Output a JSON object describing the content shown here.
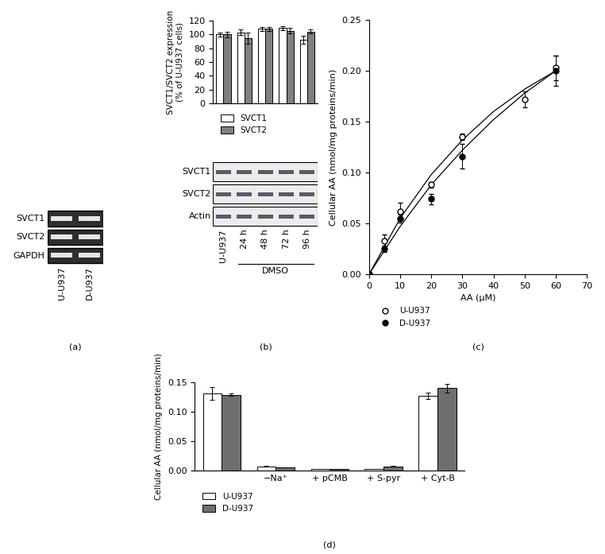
{
  "chart_data": [
    {
      "type": "blot",
      "panel": "(a)",
      "rows": [
        "SVCT1",
        "SVCT2",
        "GAPDH"
      ],
      "lanes": [
        "U-U937",
        "D-U937"
      ]
    },
    {
      "type": "bar",
      "panel": "(b)",
      "y_label": "SVCT1/SVCT2 expression\n(% of U-U937 cells)",
      "categories": [
        "U-U937",
        "24 h",
        "48 h",
        "72 h",
        "96 h"
      ],
      "series": [
        {
          "name": "SVCT1",
          "color": "#ffffff",
          "values": [
            100,
            103,
            108,
            109,
            92
          ],
          "errors": [
            3,
            4,
            3,
            3,
            6
          ]
        },
        {
          "name": "SVCT2",
          "color": "#808080",
          "values": [
            100,
            94,
            108,
            105,
            104
          ],
          "errors": [
            4,
            8,
            3,
            4,
            3
          ]
        }
      ],
      "ylim": [
        0,
        120
      ],
      "yticks": [
        0,
        20,
        40,
        60,
        80,
        100,
        120
      ],
      "tick_labels": "y",
      "legend": "upper left",
      "blot": {
        "rows": [
          "SVCT1",
          "SVCT2",
          "Actin"
        ],
        "group_label": "DMSO"
      }
    },
    {
      "type": "scatter",
      "panel": "(c)",
      "x_label": "AA (μM)",
      "y_label": "Cellular AA (nmol/mg proteins/min)",
      "series": [
        {
          "name": "U-U937",
          "color": "#000000",
          "marker": "open_circle",
          "x": [
            0,
            5,
            10,
            20,
            30,
            50,
            60
          ],
          "values": [
            0,
            0.033,
            0.062,
            0.088,
            0.135,
            0.172,
            0.203
          ],
          "errors": [
            0,
            0.006,
            0.008,
            0.003,
            0.003,
            0.008,
            0.012
          ]
        },
        {
          "name": "D-U937",
          "color": "#000000",
          "marker": "circle",
          "x": [
            0,
            5,
            10,
            20,
            30,
            60
          ],
          "values": [
            0,
            0.025,
            0.055,
            0.074,
            0.116,
            0.2
          ],
          "errors": [
            0,
            0.003,
            0.004,
            0.005,
            0.012,
            0.015
          ]
        },
        {
          "type": "line",
          "color": "#000000",
          "line_style": "solid",
          "x": [
            0,
            10,
            20,
            30,
            40,
            50,
            60
          ],
          "values": [
            0,
            0.055,
            0.098,
            0.132,
            0.16,
            0.182,
            0.2
          ]
        },
        {
          "type": "line",
          "color": "#000000",
          "line_style": "solid",
          "x": [
            0,
            10,
            20,
            30,
            40,
            50,
            60
          ],
          "values": [
            0,
            0.047,
            0.088,
            0.122,
            0.152,
            0.178,
            0.2
          ]
        }
      ],
      "xlim": [
        0,
        70
      ],
      "xticks": [
        0,
        10,
        20,
        30,
        40,
        50,
        60,
        70
      ],
      "ylim": [
        0,
        0.25
      ],
      "yticks": [
        {
          "value": 0,
          "label": "0.00"
        },
        {
          "value": 0.05,
          "label": "0.05"
        },
        {
          "value": 0.1,
          "label": "0.10"
        },
        {
          "value": 0.15,
          "label": "0.15"
        },
        {
          "value": 0.2,
          "label": "0.20"
        },
        {
          "value": 0.25,
          "label": "0.25"
        }
      ],
      "legend": "upper left"
    },
    {
      "type": "bar",
      "panel": "(d)",
      "y_label": "Cellular AA (nmol/mg proteins/min)",
      "categories": [
        null,
        "−Na⁺",
        "+ pCMB",
        "+ S-pyr",
        "+ Cyt-B"
      ],
      "series": [
        {
          "name": "U-U937",
          "color": "#ffffff",
          "values": [
            0.131,
            0.008,
            0.003,
            0.003,
            0.127
          ],
          "errors": [
            0.011,
            0.0005,
            0,
            0,
            0.006
          ]
        },
        {
          "name": "D-U937",
          "color": "#6e6e6e",
          "values": [
            0.129,
            0.006,
            0.003,
            0.008,
            0.14
          ],
          "errors": [
            0.002,
            0.0005,
            0,
            0.0005,
            0.007
          ]
        }
      ],
      "ylim": [
        0,
        0.15
      ],
      "yticks": [
        {
          "value": 0,
          "label": "0.00"
        },
        {
          "value": 0.05,
          "label": "0.05"
        },
        {
          "value": 0.1,
          "label": "0.10"
        },
        {
          "value": 0.15,
          "label": "0.15"
        }
      ],
      "legend": "upper left"
    }
  ]
}
